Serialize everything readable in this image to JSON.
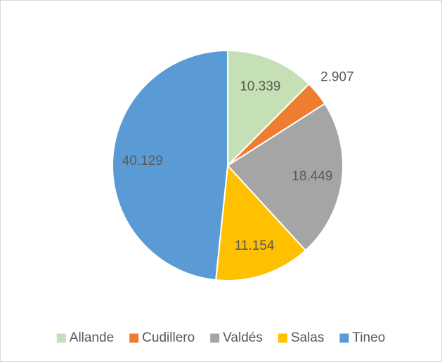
{
  "chart_data": {
    "type": "pie",
    "categories": [
      "Allande",
      "Cudillero",
      "Valdés",
      "Salas",
      "Tineo"
    ],
    "values": [
      10339,
      2907,
      18449,
      11154,
      40129
    ],
    "value_labels": [
      "10.339",
      "2.907",
      "18.449",
      "11.154",
      "40.129"
    ],
    "colors": [
      "#c5e0b4",
      "#ed7d31",
      "#a5a5a5",
      "#ffc000",
      "#5b9bd5"
    ],
    "legend": "bottom"
  }
}
